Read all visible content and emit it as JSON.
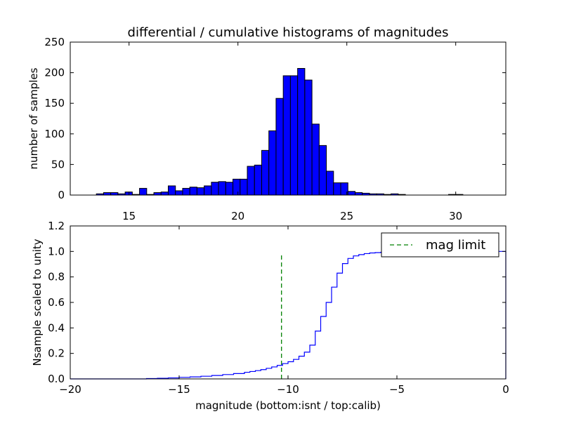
{
  "colors": {
    "bar_fill": "#0000ff",
    "cumulative_line": "#0000ff",
    "mag_limit_line": "#008000",
    "axes": "#000000",
    "background": "#ffffff"
  },
  "chart_data": [
    {
      "type": "bar",
      "title": "differential / cumulative histograms of magnitudes",
      "xlabel": "",
      "ylabel": "number of samples",
      "xlim": [
        12.3,
        32.3
      ],
      "ylim": [
        0,
        250
      ],
      "x_ticks": [
        15,
        20,
        25,
        30
      ],
      "y_ticks": [
        0,
        50,
        100,
        150,
        200,
        250
      ],
      "grid": false,
      "bin_width": 0.33,
      "bin_left_edges": [
        13.5,
        13.83,
        14.16,
        14.49,
        14.82,
        15.15,
        15.48,
        15.81,
        16.14,
        16.47,
        16.8,
        17.13,
        17.46,
        17.79,
        18.12,
        18.45,
        18.78,
        19.11,
        19.44,
        19.77,
        20.1,
        20.43,
        20.76,
        21.09,
        21.42,
        21.75,
        22.08,
        22.41,
        22.74,
        23.07,
        23.4,
        23.73,
        24.06,
        24.39,
        24.72,
        25.05,
        25.38,
        25.71,
        26.04,
        26.37,
        26.7,
        27.03,
        27.36,
        27.69,
        28.02,
        28.35,
        28.68,
        29.01,
        29.34,
        29.67,
        30.0
      ],
      "values": [
        2,
        4,
        4,
        2,
        5,
        1,
        11,
        1,
        4,
        5,
        15,
        7,
        11,
        13,
        12,
        15,
        21,
        22,
        21,
        26,
        26,
        47,
        49,
        73,
        105,
        158,
        195,
        195,
        207,
        188,
        116,
        81,
        39,
        20,
        20,
        6,
        4,
        3,
        2,
        2,
        1,
        2,
        1,
        0,
        0,
        0,
        0,
        0,
        0,
        1,
        1
      ]
    },
    {
      "type": "line",
      "drawstyle": "steps",
      "title": "",
      "xlabel": "magnitude (bottom:isnt / top:calib)",
      "ylabel": "Nsample scaled to unity",
      "xlim": [
        -20,
        0
      ],
      "ylim": [
        0,
        1.2
      ],
      "x_ticks": [
        -20,
        -15,
        -10,
        -5,
        0
      ],
      "x_tick_labels": [
        "−20",
        "−15",
        "−10",
        "−5",
        "0"
      ],
      "y_ticks": [
        0.0,
        0.2,
        0.4,
        0.6,
        0.8,
        1.0,
        1.2
      ],
      "y_tick_labels": [
        "0.0",
        "0.2",
        "0.4",
        "0.6",
        "0.8",
        "1.0",
        "1.2"
      ],
      "grid": false,
      "legend": {
        "location": "top-right",
        "entries": [
          {
            "label": "mag limit",
            "style": "dashed",
            "color": "#008000"
          }
        ]
      },
      "series": [
        {
          "name": "",
          "color": "#0000ff",
          "x": [
            -20.0,
            -16.5,
            -16.0,
            -15.5,
            -15.0,
            -14.5,
            -14.0,
            -13.5,
            -13.0,
            -12.5,
            -12.0,
            -11.75,
            -11.5,
            -11.25,
            -11.0,
            -10.75,
            -10.5,
            -10.25,
            -10.0,
            -9.75,
            -9.5,
            -9.25,
            -9.0,
            -8.75,
            -8.5,
            -8.25,
            -8.0,
            -7.75,
            -7.5,
            -7.25,
            -7.0,
            -6.75,
            -6.5,
            -6.25,
            -6.0,
            -5.75,
            -5.5,
            -5.0,
            -4.5,
            -4.0,
            -3.5,
            -3.0,
            -2.5,
            -2.0,
            -1.5,
            -1.0,
            -0.5,
            0.0
          ],
          "y": [
            0.0,
            0.003,
            0.005,
            0.008,
            0.012,
            0.016,
            0.021,
            0.027,
            0.034,
            0.042,
            0.052,
            0.058,
            0.065,
            0.073,
            0.083,
            0.094,
            0.106,
            0.12,
            0.135,
            0.153,
            0.178,
            0.21,
            0.265,
            0.375,
            0.49,
            0.6,
            0.72,
            0.83,
            0.905,
            0.945,
            0.965,
            0.975,
            0.983,
            0.988,
            0.991,
            0.994,
            0.996,
            0.997,
            0.998,
            0.999,
            0.999,
            0.999,
            1.0,
            1.0,
            1.0,
            1.0,
            1.0,
            1.0
          ]
        },
        {
          "name": "mag limit",
          "color": "#008000",
          "style": "dashed",
          "x": [
            -10.3,
            -10.3
          ],
          "y": [
            0.0,
            0.97
          ]
        }
      ]
    }
  ]
}
